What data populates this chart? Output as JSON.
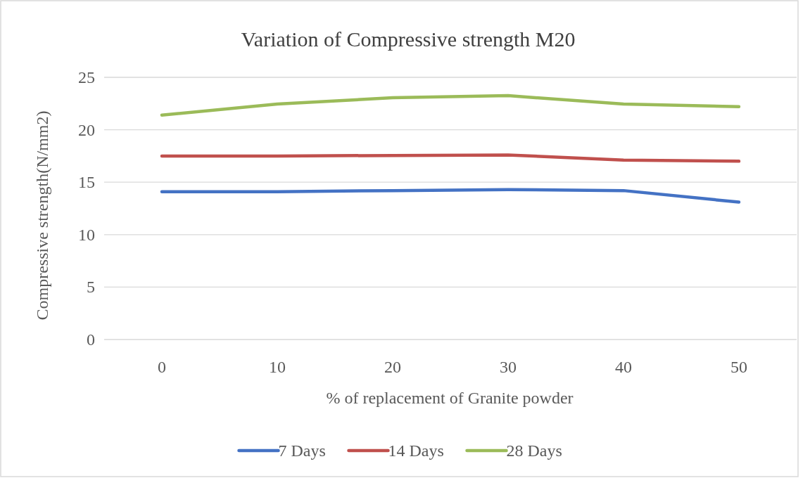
{
  "chart_data": {
    "type": "line",
    "title": "Variation of Compressive strength M20",
    "xlabel": "% of replacement of  Granite powder",
    "ylabel": "Compressive strength(N/mm2)",
    "categories": [
      "0",
      "10",
      "20",
      "30",
      "40",
      "50"
    ],
    "series": [
      {
        "name": "7 Days",
        "color": "#4472c4",
        "values": [
          14.1,
          14.1,
          14.2,
          14.3,
          14.2,
          13.1
        ]
      },
      {
        "name": "14 Days",
        "color": "#c0504d",
        "values": [
          17.5,
          17.5,
          17.55,
          17.6,
          17.1,
          17.0
        ]
      },
      {
        "name": "28 Days",
        "color": "#9bbb59",
        "values": [
          21.4,
          22.45,
          23.05,
          23.25,
          22.45,
          22.2
        ]
      }
    ],
    "ylim": [
      0,
      25
    ],
    "yticks": [
      0,
      5,
      10,
      15,
      20,
      25
    ],
    "grid": "y",
    "legend": "bottom",
    "marker": "none",
    "line_style": "solid"
  }
}
